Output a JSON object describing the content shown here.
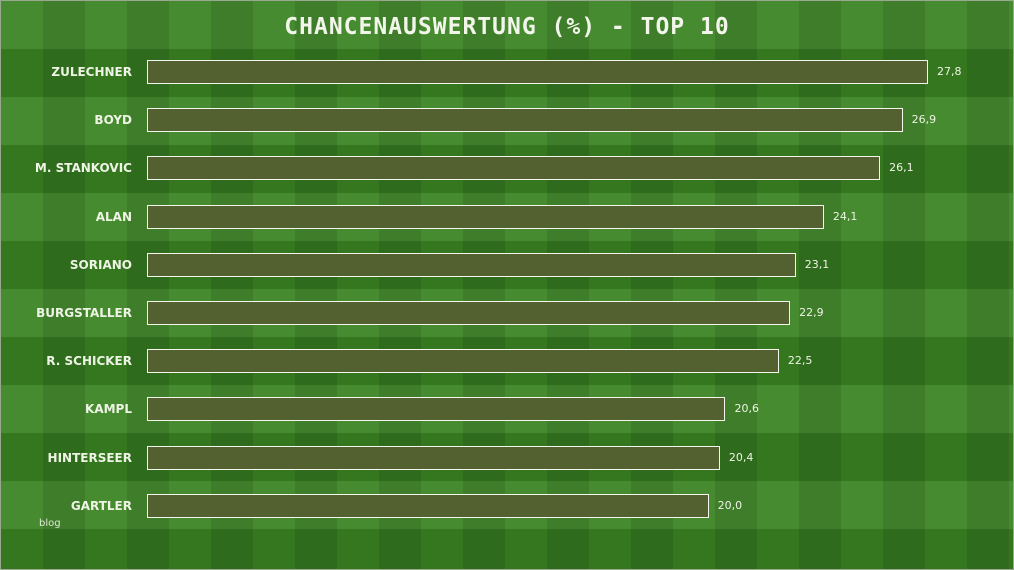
{
  "chart_data": {
    "type": "bar",
    "orientation": "horizontal",
    "title": "CHANCENAUSWERTUNG (%) - TOP 10",
    "categories": [
      "ZULECHNER",
      "BOYD",
      "M. STANKOVIC",
      "ALAN",
      "SORIANO",
      "BURGSTALLER",
      "R. SCHICKER",
      "KAMPL",
      "HINTERSEER",
      "GARTLER"
    ],
    "values": [
      27.8,
      26.9,
      26.1,
      24.1,
      23.1,
      22.9,
      22.5,
      20.6,
      20.4,
      20.0
    ],
    "value_labels": [
      "27,8",
      "26,9",
      "26,1",
      "24,1",
      "23,1",
      "22,9",
      "22,5",
      "20,6",
      "20,4",
      "20,0"
    ],
    "xlim": [
      0,
      30
    ],
    "grid": false,
    "colors": {
      "bar": "#536131",
      "bar_border": "#f4f6ee",
      "background": "#3a8422"
    }
  },
  "footer": {
    "text": "blog"
  }
}
